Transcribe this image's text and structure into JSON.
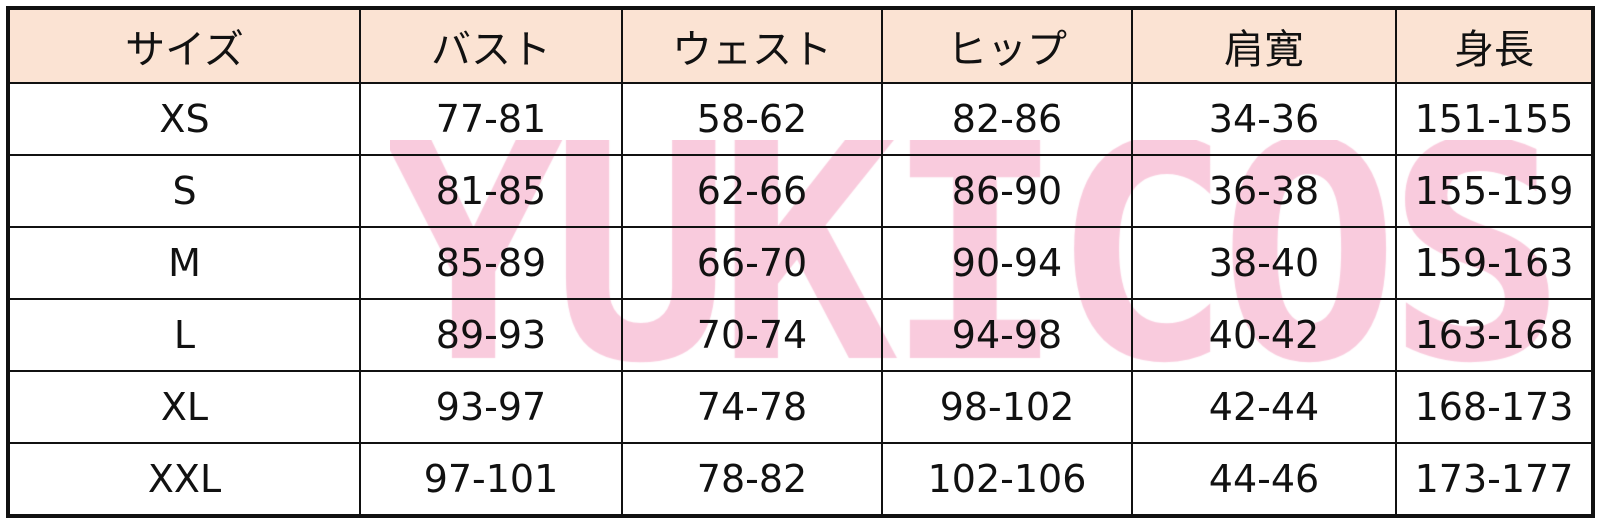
{
  "watermark": "YUKICOS",
  "watermark_color": "#f7b9d2",
  "header_color": "#fbe3d3",
  "headers": [
    "サイズ",
    "バスト",
    "ウェスト",
    "ヒップ",
    "肩寛",
    "身長"
  ],
  "rows": [
    [
      "XS",
      "77-81",
      "58-62",
      "82-86",
      "34-36",
      "151-155"
    ],
    [
      "S",
      "81-85",
      "62-66",
      "86-90",
      "36-38",
      "155-159"
    ],
    [
      "M",
      "85-89",
      "66-70",
      "90-94",
      "38-40",
      "159-163"
    ],
    [
      "L",
      "89-93",
      "70-74",
      "94-98",
      "40-42",
      "163-168"
    ],
    [
      "XL",
      "93-97",
      "74-78",
      "98-102",
      "42-44",
      "168-173"
    ],
    [
      "XXL",
      "97-101",
      "78-82",
      "102-106",
      "44-46",
      "173-177"
    ]
  ]
}
